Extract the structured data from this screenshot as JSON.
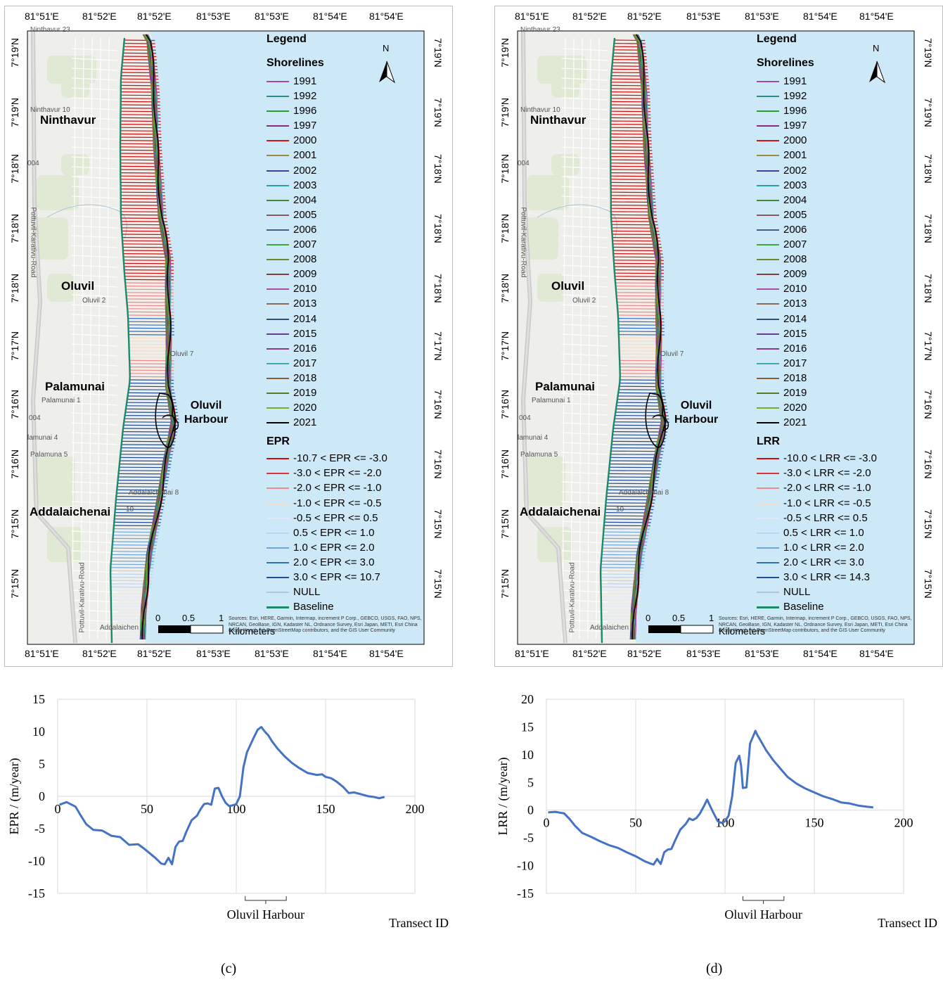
{
  "maps": [
    {
      "id": "c",
      "legend_title": "Legend",
      "north": "N",
      "shorelines_title": "Shorelines",
      "shorelines": [
        "1991",
        "1992",
        "1996",
        "1997",
        "2000",
        "2001",
        "2002",
        "2003",
        "2004",
        "2005",
        "2006",
        "2007",
        "2008",
        "2009",
        "2010",
        "2013",
        "2014",
        "2015",
        "2016",
        "2017",
        "2018",
        "2019",
        "2020",
        "2021"
      ],
      "shoreline_colors": [
        "#a34aa3",
        "#2b8a8a",
        "#2a9d2a",
        "#8a2b8a",
        "#d21414",
        "#9e8a3a",
        "#4a3aa0",
        "#2aa0a0",
        "#3a8a3a",
        "#8a5a5a",
        "#4a5a8a",
        "#3aaa3a",
        "#6a8a2a",
        "#8a3a3a",
        "#aa4aaa",
        "#8a6a5a",
        "#3a4a7a",
        "#6a3a9a",
        "#8a3a8a",
        "#3aaaaa",
        "#8a5a3a",
        "#5a7a2a",
        "#7aaa2a",
        "#000000"
      ],
      "rate_title": "EPR",
      "rate_classes": [
        "-10.7 < EPR <= -3.0",
        "-3.0 < EPR <= -2.0",
        "-2.0 < EPR <= -1.0",
        "-1.0 < EPR <= -0.5",
        "-0.5 < EPR <= 0.5",
        "0.5 < EPR <= 1.0",
        "1.0 < EPR <= 2.0",
        "2.0 < EPR <= 3.0",
        "3.0 < EPR <= 10.7",
        "NULL"
      ],
      "baseline_label": "Baseline",
      "scale": {
        "ticks": [
          "0",
          "0.5",
          "1"
        ],
        "unit": "Kilometers"
      },
      "credits": "Sources: Esri, HERE, Garmin, Intermap, increment P Corp., GEBCO, USGS, FAO, NPS, NRCAN, GeoBase, IGN, Kadaster NL, Ordnance Survey, Esri Japan, METI, Esri China (Hong Kong), (c) OpenStreetMap contributors, and the GIS User Community",
      "lon_labels": [
        "81°51'E",
        "81°52'E",
        "81°52'E",
        "81°53'E",
        "81°53'E",
        "81°54'E",
        "81°54'E"
      ],
      "lat_labels": [
        "7°19'N",
        "7°19'N",
        "7°18'N",
        "7°18'N",
        "7°18'N",
        "7°17'N",
        "7°16'N",
        "7°16'N",
        "7°15'N",
        "7°15'N"
      ],
      "places": {
        "ninthavur": "Ninthavur",
        "oluvil": "Oluvil",
        "palamunai": "Palamunai",
        "addalaichenai": "Addalaichenai",
        "harbour1": "Oluvil",
        "harbour2": "Harbour"
      },
      "small_labels": {
        "n23": "Ninthavur 23",
        "n10": "Ninthavur 10",
        "o2": "Oluvil 2",
        "o7": "Oluvil 7",
        "p1": "Palamunai 1",
        "p4": "lamunai 4",
        "p5": "Palamuna 5",
        "a8": "Addalaichenai 8",
        "a10": "10",
        "ad": "Addalaichen",
        "road": "Pottuvil-Karativu-Road",
        "road2": "Pottuvil-Karativu-Road",
        "r004": "004"
      }
    },
    {
      "id": "d",
      "legend_title": "Legend",
      "north": "N",
      "shorelines_title": "Shorelines",
      "shorelines": [
        "1991",
        "1992",
        "1996",
        "1997",
        "2000",
        "2001",
        "2002",
        "2003",
        "2004",
        "2005",
        "2006",
        "2007",
        "2008",
        "2009",
        "2010",
        "2013",
        "2014",
        "2015",
        "2016",
        "2017",
        "2018",
        "2019",
        "2020",
        "2021"
      ],
      "shoreline_colors": [
        "#a34aa3",
        "#2b8a8a",
        "#2a9d2a",
        "#8a2b8a",
        "#d21414",
        "#9e8a3a",
        "#4a3aa0",
        "#2aa0a0",
        "#3a8a3a",
        "#8a5a5a",
        "#4a5a8a",
        "#3aaa3a",
        "#6a8a2a",
        "#8a3a3a",
        "#aa4aaa",
        "#8a6a5a",
        "#3a4a7a",
        "#6a3a9a",
        "#8a3a8a",
        "#3aaaaa",
        "#8a5a3a",
        "#5a7a2a",
        "#7aaa2a",
        "#000000"
      ],
      "rate_title": "LRR",
      "rate_classes": [
        "-10.0 < LRR <= -3.0",
        "-3.0 < LRR <= -2.0",
        "-2.0 < LRR <= -1.0",
        "-1.0 < LRR <= -0.5",
        "-0.5 < LRR <= 0.5",
        "0.5 < LRR <= 1.0",
        "1.0 < LRR <= 2.0",
        "2.0 < LRR <= 3.0",
        "3.0 < LRR <= 14.3",
        "NULL"
      ],
      "baseline_label": "Baseline",
      "scale": {
        "ticks": [
          "0",
          "0.5",
          "1"
        ],
        "unit": "Kilometers"
      },
      "credits": "Sources: Esri, HERE, Garmin, Intermap, increment P Corp., GEBCO, USGS, FAO, NPS, NRCAN, GeoBase, IGN, Kadaster NL, Ordnance Survey, Esri Japan, METI, Esri China (Hong Kong), (c) OpenStreetMap contributors, and the GIS User Community",
      "lon_labels": [
        "81°51'E",
        "81°52'E",
        "81°52'E",
        "81°53'E",
        "81°53'E",
        "81°54'E",
        "81°54'E"
      ],
      "lat_labels": [
        "7°19'N",
        "7°19'N",
        "7°18'N",
        "7°18'N",
        "7°18'N",
        "7°17'N",
        "7°16'N",
        "7°16'N",
        "7°15'N",
        "7°15'N"
      ],
      "places": {
        "ninthavur": "Ninthavur",
        "oluvil": "Oluvil",
        "palamunai": "Palamunai",
        "addalaichenai": "Addalaichenai",
        "harbour1": "Oluvil",
        "harbour2": "Harbour"
      },
      "small_labels": {
        "n23": "Ninthavur 23",
        "n10": "Ninthavur 10",
        "o2": "Oluvil 2",
        "o7": "Oluvil 7",
        "p1": "Palamunai 1",
        "p4": "lamunai 4",
        "p5": "Palamuna 5",
        "a8": "Addalaichenai 8",
        "a10": "10",
        "ad": "Addalaichen",
        "road": "Pottuvil-Karativu-Road",
        "road2": "Pottuvil-Karativu-Road",
        "r004": "004"
      }
    }
  ],
  "rate_colors": [
    "#d01010",
    "#e03030",
    "#f08a8a",
    "#f3dcc8",
    "#e3e9f5",
    "#bcd4f0",
    "#6fa6e0",
    "#2f6fc4",
    "#1f4f9a",
    "#b8c4d0"
  ],
  "baseline_color": "#1a8a6a",
  "sea_color": "#cde9f7",
  "captions": [
    "(c)",
    "(d)"
  ],
  "chart_data": [
    {
      "type": "line",
      "title": "",
      "xlabel": "Transect ID",
      "ylabel": "EPR / (m/year)",
      "xlim": [
        0,
        200
      ],
      "ylim": [
        -15,
        15
      ],
      "xticks": [
        0,
        50,
        100,
        150,
        200
      ],
      "yticks": [
        -15,
        -10,
        -5,
        0,
        5,
        10,
        15
      ],
      "grid": "vertical",
      "annotation": "Oluvil Harbour",
      "annotation_range": [
        105,
        128
      ],
      "color": "#4472c4",
      "x": [
        1,
        5,
        10,
        13,
        16,
        20,
        25,
        30,
        35,
        40,
        45,
        48,
        52,
        55,
        58,
        60,
        62,
        64,
        66,
        68,
        70,
        72,
        75,
        78,
        80,
        82,
        84,
        86,
        88,
        90,
        92,
        94,
        96,
        98,
        100,
        102,
        104,
        106,
        108,
        110,
        112,
        114,
        116,
        118,
        120,
        123,
        127,
        131,
        135,
        140,
        145,
        148,
        150,
        153,
        156,
        160,
        163,
        166,
        170,
        174,
        177,
        180,
        183
      ],
      "values": [
        -1.3,
        -0.9,
        -1.6,
        -3.0,
        -4.3,
        -5.2,
        -5.3,
        -6.1,
        -6.3,
        -7.5,
        -7.4,
        -8.0,
        -8.9,
        -9.6,
        -10.4,
        -10.5,
        -9.5,
        -10.5,
        -7.8,
        -7.0,
        -6.9,
        -5.5,
        -3.7,
        -3.0,
        -2.0,
        -1.2,
        -1.1,
        -1.3,
        1.2,
        1.3,
        0.0,
        -1.0,
        -1.5,
        -1.4,
        -1.2,
        0.0,
        4.5,
        6.8,
        8.0,
        9.2,
        10.3,
        10.7,
        10.0,
        9.4,
        8.5,
        7.4,
        6.2,
        5.2,
        4.4,
        3.6,
        3.3,
        3.4,
        3.0,
        2.8,
        2.3,
        1.4,
        0.5,
        0.6,
        0.3,
        0.0,
        -0.1,
        -0.3,
        -0.1
      ]
    },
    {
      "type": "line",
      "title": "",
      "xlabel": "Transect ID",
      "ylabel": "LRR / (m/year)",
      "xlim": [
        0,
        200
      ],
      "ylim": [
        -15,
        20
      ],
      "xticks": [
        0,
        50,
        100,
        150,
        200
      ],
      "yticks": [
        -15,
        -10,
        -5,
        0,
        5,
        10,
        15,
        20
      ],
      "grid": "vertical",
      "annotation": "Oluvil Harbour",
      "annotation_range": [
        110,
        133
      ],
      "color": "#4472c4",
      "x": [
        1,
        5,
        10,
        13,
        16,
        20,
        25,
        30,
        35,
        40,
        45,
        50,
        55,
        58,
        60,
        62,
        64,
        66,
        68,
        70,
        72,
        75,
        78,
        80,
        82,
        84,
        86,
        88,
        90,
        92,
        94,
        96,
        98,
        100,
        102,
        104,
        106,
        108,
        109,
        110,
        112,
        114,
        116,
        117,
        118,
        120,
        123,
        127,
        131,
        135,
        140,
        145,
        150,
        155,
        160,
        165,
        170,
        175,
        180,
        183
      ],
      "values": [
        -0.4,
        -0.3,
        -0.6,
        -1.6,
        -2.8,
        -4.1,
        -4.8,
        -5.6,
        -6.3,
        -6.8,
        -7.6,
        -8.3,
        -9.2,
        -9.6,
        -9.8,
        -8.8,
        -9.7,
        -7.6,
        -7.1,
        -7.0,
        -5.5,
        -3.5,
        -2.5,
        -1.5,
        -1.8,
        -1.4,
        -0.6,
        0.6,
        1.9,
        0.5,
        -0.8,
        -2.0,
        -2.3,
        -2.0,
        -1.0,
        2.5,
        8.5,
        9.8,
        8.0,
        4.0,
        4.1,
        12.0,
        13.5,
        14.3,
        13.6,
        12.5,
        10.8,
        9.0,
        7.5,
        6.0,
        4.8,
        3.9,
        3.2,
        2.5,
        2.0,
        1.4,
        1.2,
        0.8,
        0.6,
        0.5
      ]
    }
  ]
}
